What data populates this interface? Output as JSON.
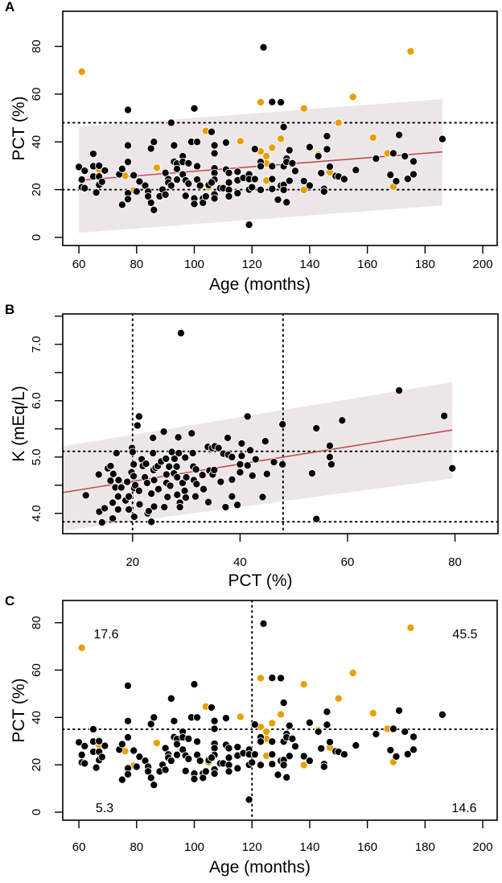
{
  "colors": {
    "black_points": "#000000",
    "orange_points": "#E69F00",
    "fit_line": "#C0504D",
    "band": "#EDE6E9"
  },
  "chart_data": [
    {
      "panel_label": "A",
      "type": "scatter",
      "xlabel": "Age (months)",
      "ylabel": "PCT (%)",
      "xlim": [
        54.4,
        205
      ],
      "ylim": [
        -3.4,
        94.7
      ],
      "xticks": [
        60,
        80,
        100,
        120,
        140,
        160,
        180,
        200
      ],
      "yticks": [
        0,
        20,
        40,
        60,
        80
      ],
      "grid": false,
      "hlines": [
        20,
        48
      ],
      "vlines": [],
      "fit_line": [
        [
          60,
          23.9
        ],
        [
          186,
          35.8
        ]
      ],
      "band": {
        "x": [
          60,
          186
        ],
        "lower": [
          1.9,
          13.4
        ],
        "upper": [
          46.4,
          57.9
        ]
      },
      "series_ref": "age_pct"
    },
    {
      "panel_label": "B",
      "type": "scatter",
      "xlabel": "PCT (%)",
      "ylabel": "K (mEq/L)",
      "xlim": [
        7,
        88
      ],
      "ylim": [
        3.64,
        7.54
      ],
      "xticks": [
        20,
        40,
        60,
        80
      ],
      "yticks": [
        4.0,
        4.5,
        5.0,
        5.5,
        6.0,
        6.5,
        7.0,
        7.5
      ],
      "ytick_labels": [
        "4.0",
        "",
        "5.0",
        "",
        "6.0",
        "",
        "7.0",
        ""
      ],
      "grid": false,
      "hlines": [
        3.85,
        5.1
      ],
      "vlines": [
        20,
        48
      ],
      "fit_line": [
        [
          7,
          4.37
        ],
        [
          79.5,
          5.48
        ]
      ],
      "band": {
        "x": [
          7,
          79.5
        ],
        "lower": [
          3.69,
          4.62
        ],
        "upper": [
          5.19,
          6.33
        ]
      },
      "series": [
        {
          "color": "black",
          "points": [
            [
              29,
              7.2
            ],
            [
              21.2,
              5.72
            ],
            [
              20.9,
              5.56
            ],
            [
              41.4,
              5.72
            ],
            [
              47.9,
              5.58
            ],
            [
              47.9,
              4.87
            ],
            [
              53.4,
              4.71
            ],
            [
              11.3,
              4.32
            ],
            [
              13.7,
              4.69
            ],
            [
              14.3,
              3.84
            ],
            [
              13.8,
              4.03
            ],
            [
              14.8,
              4.09
            ],
            [
              15.4,
              4.8
            ],
            [
              15.9,
              4.84
            ],
            [
              15.9,
              4.58
            ],
            [
              16.4,
              4.7
            ],
            [
              16.3,
              3.91
            ],
            [
              16.3,
              4.19
            ],
            [
              16.8,
              4.46
            ],
            [
              17,
              5.07
            ],
            [
              17.3,
              4.3
            ],
            [
              17.4,
              4.59
            ],
            [
              17.3,
              4.07
            ],
            [
              17.9,
              4.46
            ],
            [
              18.7,
              4.23
            ],
            [
              19,
              4.56
            ],
            [
              19.3,
              4.3
            ],
            [
              19.3,
              4.07
            ],
            [
              19.8,
              4.73
            ],
            [
              19.9,
              5.16
            ],
            [
              20,
              5.09
            ],
            [
              20.2,
              4.87
            ],
            [
              20.2,
              4.66
            ],
            [
              20.3,
              3.94
            ],
            [
              20.3,
              4.45
            ],
            [
              20.5,
              4.5
            ],
            [
              21.2,
              4.4
            ],
            [
              21.3,
              4.16
            ],
            [
              21.7,
              4.96
            ],
            [
              21.9,
              4.84
            ],
            [
              22.3,
              4.64
            ],
            [
              22.5,
              4.88
            ],
            [
              22.7,
              4.54
            ],
            [
              22.8,
              4.0
            ],
            [
              23,
              4.04
            ],
            [
              23.5,
              3.85
            ],
            [
              23.5,
              4.35
            ],
            [
              23.8,
              5.07
            ],
            [
              23.8,
              5.34
            ],
            [
              23.9,
              4.77
            ],
            [
              24,
              4.59
            ],
            [
              24,
              4.12
            ],
            [
              24.3,
              4.81
            ],
            [
              24.7,
              4.84
            ],
            [
              24.8,
              4.43
            ],
            [
              25.3,
              4.92
            ],
            [
              25.8,
              5.45
            ],
            [
              25.9,
              4.11
            ],
            [
              26.2,
              4.97
            ],
            [
              26.3,
              4.69
            ],
            [
              26.3,
              4.54
            ],
            [
              26.5,
              4.29
            ],
            [
              26.8,
              4.83
            ],
            [
              27,
              4.49
            ],
            [
              27.3,
              5.09
            ],
            [
              27.7,
              4.71
            ],
            [
              27.8,
              4.97
            ],
            [
              28.2,
              4.83
            ],
            [
              28.3,
              4.64
            ],
            [
              28.3,
              4.33
            ],
            [
              28.5,
              5.35
            ],
            [
              28.6,
              5.07
            ],
            [
              28.8,
              4.19
            ],
            [
              28.8,
              4.11
            ],
            [
              29.3,
              4.54
            ],
            [
              29.7,
              4.4
            ],
            [
              29.8,
              4.99
            ],
            [
              29.9,
              4.28
            ],
            [
              30,
              4.64
            ],
            [
              31,
              5.42
            ],
            [
              31.2,
              5.07
            ],
            [
              31.3,
              4.83
            ],
            [
              31.4,
              4.59
            ],
            [
              31.7,
              4.3
            ],
            [
              31.8,
              4.78
            ],
            [
              31.9,
              4.52
            ],
            [
              33,
              4.68
            ],
            [
              33.2,
              4.43
            ],
            [
              34,
              5.18
            ],
            [
              34.1,
              4.2
            ],
            [
              34.3,
              4.76
            ],
            [
              34.8,
              5.16
            ],
            [
              34.9,
              4.69
            ],
            [
              35.3,
              5.19
            ],
            [
              35.2,
              4.77
            ],
            [
              36,
              5.16
            ],
            [
              36.4,
              4.56
            ],
            [
              36.9,
              5.06
            ],
            [
              37.3,
              4.11
            ],
            [
              37.7,
              5.34
            ],
            [
              37.8,
              5.04
            ],
            [
              38.5,
              5.0
            ],
            [
              38.5,
              4.6
            ],
            [
              38.5,
              4.3
            ],
            [
              39.5,
              4.15
            ],
            [
              40,
              4.87
            ],
            [
              40,
              4.73
            ],
            [
              40.3,
              5.24
            ],
            [
              40.3,
              5.02
            ],
            [
              41.4,
              4.85
            ],
            [
              41.9,
              5.12
            ],
            [
              42.3,
              4.67
            ],
            [
              42.9,
              4.96
            ],
            [
              44.2,
              4.29
            ],
            [
              44.7,
              5.28
            ],
            [
              45,
              4.7
            ],
            [
              46.3,
              4.91
            ],
            [
              54.2,
              5.51
            ],
            [
              59,
              5.65
            ],
            [
              69.6,
              6.18
            ],
            [
              78,
              5.73
            ],
            [
              56.7,
              5.2
            ],
            [
              56.7,
              5.0
            ],
            [
              57,
              4.87
            ],
            [
              53.4,
              4.71
            ],
            [
              79.5,
              4.8
            ],
            [
              54.2,
              3.9
            ]
          ]
        }
      ]
    },
    {
      "panel_label": "C",
      "type": "scatter",
      "xlabel": "Age (months)",
      "ylabel": "PCT (%)",
      "xlim": [
        54.4,
        205
      ],
      "ylim": [
        -3.4,
        89.4
      ],
      "xticks": [
        60,
        80,
        100,
        120,
        140,
        160,
        180,
        200
      ],
      "yticks": [
        0,
        20,
        40,
        60,
        80
      ],
      "grid": false,
      "hlines": [
        35
      ],
      "vlines": [
        120
      ],
      "quadrant_labels": {
        "top_left": "17.6",
        "top_right": "45.5",
        "bottom_left": "5.3",
        "bottom_right": "14.6"
      },
      "series_ref": "age_pct"
    }
  ],
  "age_pct": [
    {
      "color": "orange",
      "points": [
        [
          61,
          69.4
        ],
        [
          67,
          28.4
        ],
        [
          76,
          25.8
        ],
        [
          79,
          19.7
        ],
        [
          87,
          29.2
        ],
        [
          104,
          44.6
        ],
        [
          105,
          21
        ],
        [
          116,
          40.3
        ],
        [
          123,
          56.6
        ],
        [
          123,
          36
        ],
        [
          125,
          34
        ],
        [
          125,
          31
        ],
        [
          125,
          23.8
        ],
        [
          127,
          37.6
        ],
        [
          175,
          77.9
        ],
        [
          155,
          58.8
        ],
        [
          138,
          54
        ],
        [
          150,
          48
        ],
        [
          130,
          41.3
        ],
        [
          143,
          34.7
        ],
        [
          147,
          27.3
        ],
        [
          138,
          19.9
        ],
        [
          162,
          41.8
        ],
        [
          167,
          35.2
        ],
        [
          169,
          21.2
        ]
      ]
    },
    {
      "color": "black",
      "points": [
        [
          124,
          79.6
        ],
        [
          60,
          29.5
        ],
        [
          62,
          27.9
        ],
        [
          61,
          24.2
        ],
        [
          61,
          21
        ],
        [
          62,
          20.6
        ],
        [
          65,
          35
        ],
        [
          65,
          29.8
        ],
        [
          65,
          25.5
        ],
        [
          66,
          18.8
        ],
        [
          67,
          30
        ],
        [
          67,
          25.5
        ],
        [
          67,
          22
        ],
        [
          68,
          23.3
        ],
        [
          69,
          28
        ],
        [
          74,
          26.4
        ],
        [
          75,
          28.7
        ],
        [
          77,
          53.4
        ],
        [
          77,
          38.5
        ],
        [
          77,
          31.6
        ],
        [
          77,
          18.5
        ],
        [
          77,
          16
        ],
        [
          75,
          13.7
        ],
        [
          79,
          26
        ],
        [
          80,
          19.2
        ],
        [
          81,
          23.4
        ],
        [
          83,
          21.7
        ],
        [
          84,
          19.2
        ],
        [
          84,
          17.2
        ],
        [
          85,
          14.5
        ],
        [
          86,
          11.5
        ],
        [
          85,
          37.2
        ],
        [
          86,
          40
        ],
        [
          88,
          17.2
        ],
        [
          89,
          20
        ],
        [
          90,
          17.9
        ],
        [
          90,
          27
        ],
        [
          91,
          24.4
        ],
        [
          91,
          23
        ],
        [
          92,
          21.7
        ],
        [
          92,
          48
        ],
        [
          93,
          38.5
        ],
        [
          93,
          31.7
        ],
        [
          94,
          30.9
        ],
        [
          94,
          28.7
        ],
        [
          94,
          24.2
        ],
        [
          96,
          34
        ],
        [
          96,
          31.6
        ],
        [
          96,
          26.4
        ],
        [
          97,
          23.9
        ],
        [
          97,
          17.4
        ],
        [
          98,
          31
        ],
        [
          98,
          22.5
        ],
        [
          100,
          54
        ],
        [
          99,
          40
        ],
        [
          101,
          40
        ],
        [
          101,
          29.8
        ],
        [
          101,
          24.2
        ],
        [
          100,
          16.3
        ],
        [
          100,
          14
        ],
        [
          102,
          21.7
        ],
        [
          103,
          16.3
        ],
        [
          103,
          14.5
        ],
        [
          104,
          17.2
        ],
        [
          105,
          21.9
        ],
        [
          106,
          44.2
        ],
        [
          107,
          38.5
        ],
        [
          107,
          35.2
        ],
        [
          107,
          28.9
        ],
        [
          107,
          27
        ],
        [
          107,
          24.2
        ],
        [
          106,
          23
        ],
        [
          107,
          18
        ],
        [
          107,
          16.3
        ],
        [
          109,
          20.6
        ],
        [
          110,
          20.6
        ],
        [
          111,
          39.7
        ],
        [
          111,
          28.4
        ],
        [
          112,
          27
        ],
        [
          112,
          23
        ],
        [
          112,
          19.9
        ],
        [
          112,
          17.2
        ],
        [
          115,
          27.5
        ],
        [
          115,
          23.9
        ],
        [
          115,
          18.5
        ],
        [
          117,
          24.9
        ],
        [
          119,
          26.4
        ],
        [
          119,
          24.4
        ],
        [
          119,
          20
        ],
        [
          119,
          5.3
        ],
        [
          120,
          21
        ],
        [
          121,
          37
        ],
        [
          121,
          24.4
        ],
        [
          123,
          31.6
        ],
        [
          123,
          29.8
        ],
        [
          123,
          19.9
        ],
        [
          127,
          56.7
        ],
        [
          127,
          24.4
        ],
        [
          127,
          20.3
        ],
        [
          130,
          56.6
        ],
        [
          131,
          46.2
        ],
        [
          127,
          29.8
        ],
        [
          129,
          15.8
        ],
        [
          132,
          14.7
        ],
        [
          130,
          21.7
        ],
        [
          131,
          22
        ],
        [
          131,
          19.9
        ],
        [
          131,
          29.8
        ],
        [
          132,
          33
        ],
        [
          132,
          31.6
        ],
        [
          133,
          36.5
        ],
        [
          133,
          23.7
        ],
        [
          134,
          31
        ],
        [
          135,
          27.8
        ],
        [
          138,
          23.6
        ],
        [
          140,
          37.8
        ],
        [
          140,
          21.7
        ],
        [
          143,
          34
        ],
        [
          144,
          26.9
        ],
        [
          145,
          20.3
        ],
        [
          145,
          19.2
        ],
        [
          146,
          42.4
        ],
        [
          146,
          36.9
        ],
        [
          147,
          29.6
        ],
        [
          149,
          25.7
        ],
        [
          150,
          25.5
        ],
        [
          152,
          24.4
        ],
        [
          156,
          28.2
        ],
        [
          163,
          33
        ],
        [
          168,
          26.2
        ],
        [
          169,
          35.2
        ],
        [
          170,
          23.5
        ],
        [
          171,
          42.9
        ],
        [
          173,
          34
        ],
        [
          174,
          24.5
        ],
        [
          176,
          31.8
        ],
        [
          176,
          26.4
        ],
        [
          186,
          41.2
        ]
      ]
    }
  ]
}
